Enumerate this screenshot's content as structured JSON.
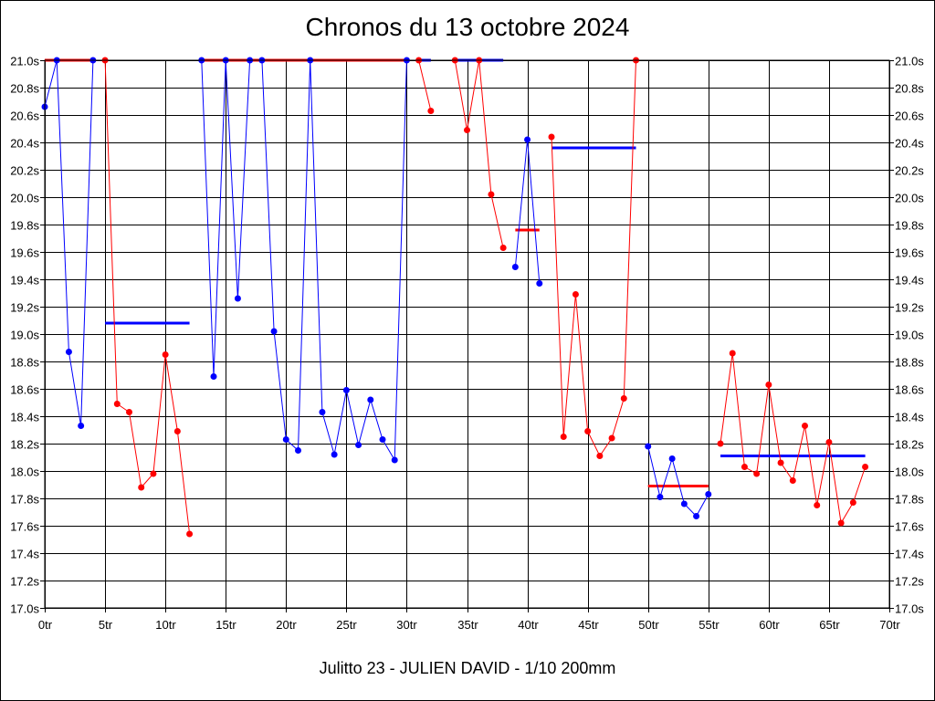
{
  "chart_data": {
    "type": "line",
    "title": "Chronos du 13 octobre 2024",
    "caption": "Julitto 23 - JULIEN DAVID - 1/10 200mm",
    "xlim": [
      0,
      70
    ],
    "ylim": [
      17.0,
      21.0
    ],
    "x_ticks": [
      0,
      5,
      10,
      15,
      20,
      25,
      30,
      35,
      40,
      45,
      50,
      55,
      60,
      65,
      70
    ],
    "x_tick_labels": [
      "0tr",
      "5tr",
      "10tr",
      "15tr",
      "20tr",
      "25tr",
      "30tr",
      "35tr",
      "40tr",
      "45tr",
      "50tr",
      "55tr",
      "60tr",
      "65tr",
      "70tr"
    ],
    "y_ticks": [
      17.0,
      17.2,
      17.4,
      17.6,
      17.8,
      18.0,
      18.2,
      18.4,
      18.6,
      18.8,
      19.0,
      19.2,
      19.4,
      19.6,
      19.8,
      20.0,
      20.2,
      20.4,
      20.6,
      20.8,
      21.0
    ],
    "y_tick_labels": [
      "17.0s",
      "17.2s",
      "17.4s",
      "17.6s",
      "17.8s",
      "18.0s",
      "18.2s",
      "18.4s",
      "18.6s",
      "18.8s",
      "19.0s",
      "19.2s",
      "19.4s",
      "19.6s",
      "19.8s",
      "20.0s",
      "20.2s",
      "20.4s",
      "20.6s",
      "20.8s",
      "21.0s"
    ],
    "grid": true,
    "colors": {
      "blue": "#0000ff",
      "red": "#ff0000"
    },
    "series": [
      {
        "color": "blue",
        "points": [
          [
            0,
            20.66
          ],
          [
            1,
            21.0
          ],
          [
            2,
            18.87
          ],
          [
            3,
            18.33
          ],
          [
            4,
            21.0
          ]
        ]
      },
      {
        "color": "red",
        "points": [
          [
            5,
            21.0
          ],
          [
            6,
            18.49
          ],
          [
            7,
            18.43
          ],
          [
            8,
            17.88
          ],
          [
            9,
            17.98
          ],
          [
            10,
            18.85
          ],
          [
            11,
            18.29
          ],
          [
            12,
            17.54
          ]
        ]
      },
      {
        "color": "blue",
        "points": [
          [
            13,
            21.0
          ],
          [
            14,
            18.69
          ],
          [
            15,
            21.0
          ],
          [
            16,
            19.26
          ],
          [
            17,
            21.0
          ],
          [
            18,
            21.0
          ],
          [
            19,
            19.02
          ],
          [
            20,
            18.23
          ],
          [
            21,
            18.15
          ],
          [
            22,
            21.0
          ],
          [
            23,
            18.43
          ],
          [
            24,
            18.12
          ],
          [
            25,
            18.59
          ],
          [
            26,
            18.19
          ],
          [
            27,
            18.52
          ],
          [
            28,
            18.23
          ],
          [
            29,
            18.08
          ],
          [
            30,
            21.0
          ]
        ]
      },
      {
        "color": "red",
        "points": [
          [
            31,
            21.0
          ],
          [
            32,
            20.63
          ]
        ]
      },
      {
        "color": "red",
        "points": [
          [
            34,
            21.0
          ],
          [
            35,
            20.49
          ],
          [
            36,
            21.0
          ],
          [
            37,
            20.02
          ],
          [
            38,
            19.63
          ]
        ]
      },
      {
        "color": "blue",
        "points": [
          [
            39,
            19.49
          ],
          [
            40,
            20.42
          ],
          [
            41,
            19.37
          ]
        ]
      },
      {
        "color": "red",
        "points": [
          [
            42,
            20.44
          ],
          [
            43,
            18.25
          ],
          [
            44,
            19.29
          ],
          [
            45,
            18.29
          ],
          [
            46,
            18.11
          ],
          [
            47,
            18.24
          ],
          [
            48,
            18.53
          ],
          [
            49,
            21.0
          ]
        ]
      },
      {
        "color": "blue",
        "points": [
          [
            50,
            18.18
          ],
          [
            51,
            17.81
          ],
          [
            52,
            18.09
          ],
          [
            53,
            17.76
          ],
          [
            54,
            17.67
          ],
          [
            55,
            17.83
          ]
        ]
      },
      {
        "color": "red",
        "points": [
          [
            56,
            18.2
          ],
          [
            57,
            18.86
          ],
          [
            58,
            18.03
          ],
          [
            59,
            17.98
          ],
          [
            60,
            18.63
          ],
          [
            61,
            18.06
          ],
          [
            62,
            17.93
          ],
          [
            63,
            18.33
          ],
          [
            64,
            17.75
          ],
          [
            65,
            18.21
          ],
          [
            66,
            17.62
          ],
          [
            67,
            17.77
          ],
          [
            68,
            18.03
          ]
        ]
      }
    ],
    "average_lines": [
      {
        "color": "red",
        "x": [
          0,
          4
        ],
        "y": 21.0
      },
      {
        "color": "blue",
        "x": [
          5,
          12
        ],
        "y": 19.08
      },
      {
        "color": "red",
        "x": [
          13,
          30
        ],
        "y": 21.0
      },
      {
        "color": "blue",
        "x": [
          31,
          32
        ],
        "y": 21.0
      },
      {
        "color": "blue",
        "x": [
          34,
          38
        ],
        "y": 21.0
      },
      {
        "color": "red",
        "x": [
          39,
          41
        ],
        "y": 19.76
      },
      {
        "color": "blue",
        "x": [
          42,
          49
        ],
        "y": 20.36
      },
      {
        "color": "red",
        "x": [
          50,
          55
        ],
        "y": 17.89
      },
      {
        "color": "blue",
        "x": [
          56,
          68
        ],
        "y": 18.11
      }
    ]
  }
}
